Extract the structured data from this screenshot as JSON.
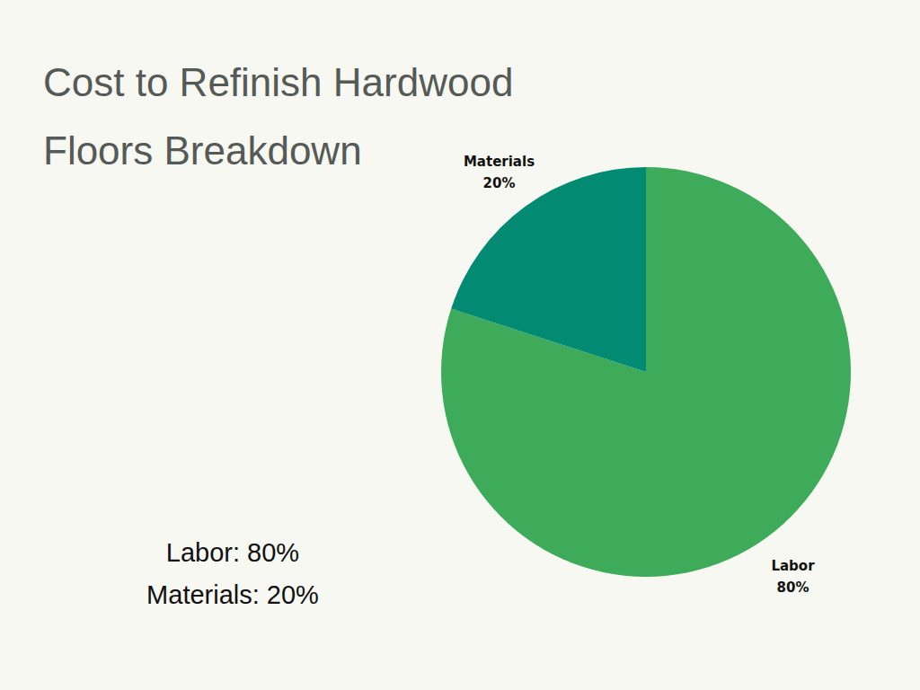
{
  "chart_data": {
    "type": "pie",
    "title": "Cost to Refinish Hardwood Floors Breakdown",
    "categories": [
      "Labor",
      "Materials"
    ],
    "values": [
      80,
      20
    ],
    "value_labels": [
      "80%",
      "20%"
    ],
    "colors": [
      "#3dab5a",
      "#028a72"
    ],
    "data_labels": true,
    "annotations": [
      "Labor: 80%",
      "Materials: 20%"
    ]
  }
}
